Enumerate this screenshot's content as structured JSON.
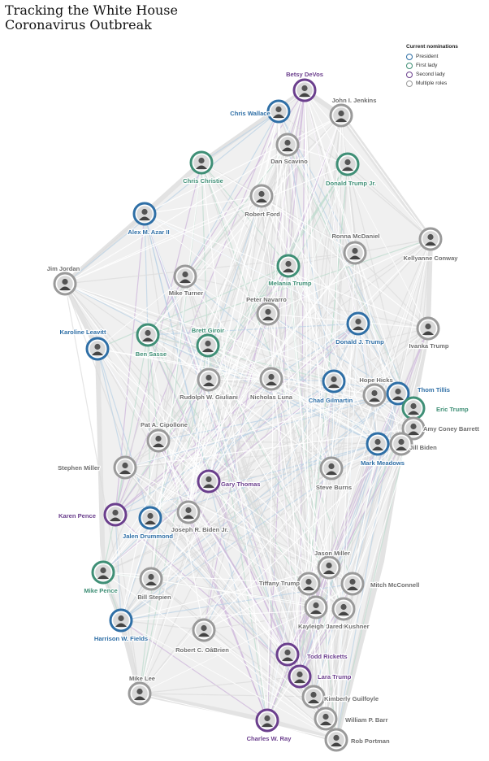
{
  "title": [
    "Tracking the White House",
    "Coronavirus Outbreak"
  ],
  "legend": {
    "title": "Current nominations",
    "items": [
      {
        "key": "president",
        "label": "President",
        "color": "#2f6fa6"
      },
      {
        "key": "first_lady",
        "label": "First lady",
        "color": "#3f8f76"
      },
      {
        "key": "second_lady",
        "label": "Second lady",
        "color": "#6b3f8d"
      },
      {
        "key": "multiple",
        "label": "Multiple roles",
        "color": "#9a9a9a"
      }
    ]
  },
  "people": [
    {
      "id": "devos",
      "name": "Betsy DeVos",
      "group": "second_lady"
    },
    {
      "id": "jenkins",
      "name": "John I. Jenkins",
      "group": "multiple"
    },
    {
      "id": "wallace",
      "name": "Chris Wallace",
      "group": "president"
    },
    {
      "id": "scavino",
      "name": "Dan Scavino",
      "group": "multiple"
    },
    {
      "id": "christie",
      "name": "Chris Christie",
      "group": "first_lady"
    },
    {
      "id": "trumpjr",
      "name": "Donald Trump Jr.",
      "group": "first_lady"
    },
    {
      "id": "ford",
      "name": "Robert Ford",
      "group": "multiple"
    },
    {
      "id": "azar",
      "name": "Alex M. Azar II",
      "group": "president"
    },
    {
      "id": "mcdaniel",
      "name": "Ronna McDaniel",
      "group": "multiple"
    },
    {
      "id": "conway",
      "name": "Kellyanne Conway",
      "group": "multiple"
    },
    {
      "id": "jordan",
      "name": "Jim Jordan",
      "group": "multiple"
    },
    {
      "id": "turner",
      "name": "Mike Turner",
      "group": "multiple"
    },
    {
      "id": "melania",
      "name": "Melania Trump",
      "group": "first_lady"
    },
    {
      "id": "navarro",
      "name": "Peter Navarro",
      "group": "multiple"
    },
    {
      "id": "djtrump",
      "name": "Donald J. Trump",
      "group": "president"
    },
    {
      "id": "ivanka",
      "name": "Ivanka Trump",
      "group": "multiple"
    },
    {
      "id": "leavitt",
      "name": "Karoline Leavitt",
      "group": "president"
    },
    {
      "id": "sasse",
      "name": "Ben Sasse",
      "group": "first_lady"
    },
    {
      "id": "giroir",
      "name": "Brett Giroir",
      "group": "first_lady"
    },
    {
      "id": "giuliani",
      "name": "Rudolph W. Giuliani",
      "group": "multiple"
    },
    {
      "id": "luna",
      "name": "Nicholas Luna",
      "group": "multiple"
    },
    {
      "id": "gilmartin",
      "name": "Chad Gilmartin",
      "group": "president"
    },
    {
      "id": "hicks",
      "name": "Hope Hicks",
      "group": "multiple"
    },
    {
      "id": "tillis",
      "name": "Thom Tillis",
      "group": "president"
    },
    {
      "id": "erictrump",
      "name": "Eric Trump",
      "group": "first_lady"
    },
    {
      "id": "barrett",
      "name": "Amy Coney Barrett",
      "group": "multiple"
    },
    {
      "id": "jillbiden",
      "name": "Jill Biden",
      "group": "multiple"
    },
    {
      "id": "meadows",
      "name": "Mark Meadows",
      "group": "president"
    },
    {
      "id": "cipollone",
      "name": "Pat A. Cipollone",
      "group": "multiple"
    },
    {
      "id": "miller",
      "name": "Stephen Miller",
      "group": "multiple"
    },
    {
      "id": "thomas",
      "name": "Gary Thomas",
      "group": "second_lady"
    },
    {
      "id": "burns",
      "name": "Steve Burns",
      "group": "multiple"
    },
    {
      "id": "kpence",
      "name": "Karen Pence",
      "group": "second_lady"
    },
    {
      "id": "drummond",
      "name": "Jalen Drummond",
      "group": "president"
    },
    {
      "id": "biden",
      "name": "Joseph R. Biden Jr.",
      "group": "multiple"
    },
    {
      "id": "jmiller",
      "name": "Jason Miller",
      "group": "multiple"
    },
    {
      "id": "mpence",
      "name": "Mike Pence",
      "group": "first_lady"
    },
    {
      "id": "stepien",
      "name": "Bill Stepien",
      "group": "multiple"
    },
    {
      "id": "tiffany",
      "name": "Tiffany Trump",
      "group": "multiple"
    },
    {
      "id": "mcconnell",
      "name": "Mitch McConnell",
      "group": "multiple"
    },
    {
      "id": "mcenany",
      "name": "Kayleigh McEnany",
      "group": "multiple"
    },
    {
      "id": "kushner",
      "name": "Jared Kushner",
      "group": "multiple"
    },
    {
      "id": "fields",
      "name": "Harrison W. Fields",
      "group": "president"
    },
    {
      "id": "obrien",
      "name": "Robert C. OâBrien",
      "group": "multiple"
    },
    {
      "id": "ricketts",
      "name": "Todd Ricketts",
      "group": "second_lady"
    },
    {
      "id": "laratrump",
      "name": "Lara Trump",
      "group": "second_lady"
    },
    {
      "id": "lee",
      "name": "Mike Lee",
      "group": "multiple"
    },
    {
      "id": "guilfoyle",
      "name": "Kimberly Guilfoyle",
      "group": "multiple"
    },
    {
      "id": "barr",
      "name": "William P. Barr",
      "group": "multiple"
    },
    {
      "id": "ray",
      "name": "Charles W. Ray",
      "group": "second_lady"
    },
    {
      "id": "portman",
      "name": "Rob Portman",
      "group": "multiple"
    }
  ]
}
